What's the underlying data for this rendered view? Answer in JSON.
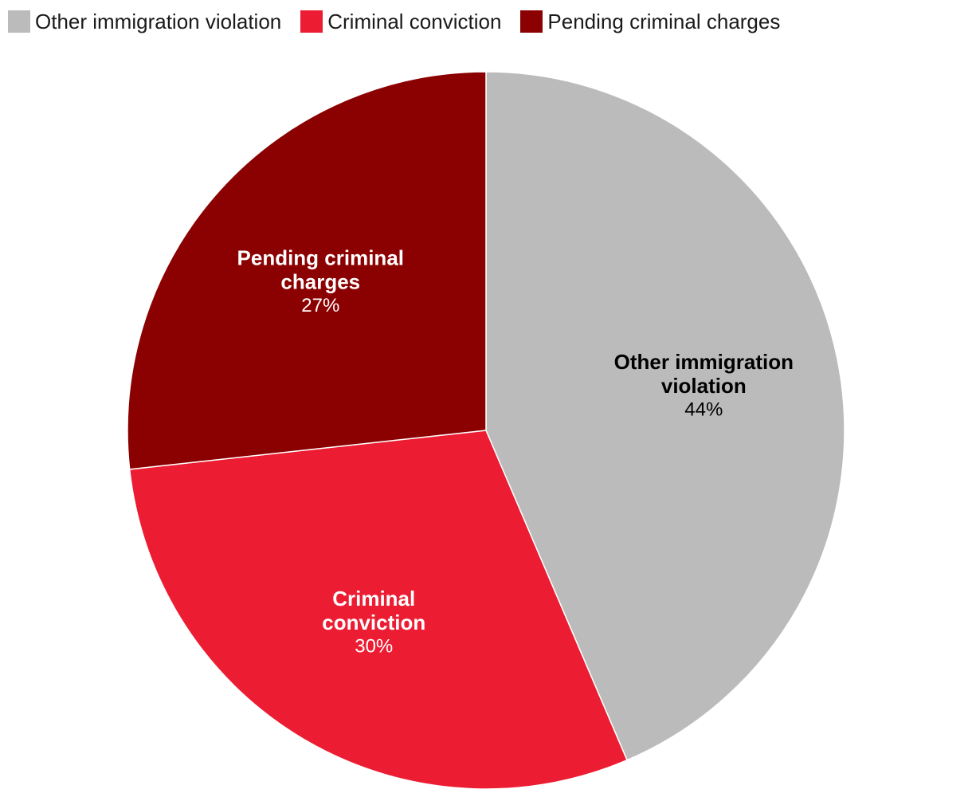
{
  "chart_data": {
    "type": "pie",
    "title": "",
    "legend_position": "top-left",
    "slices": [
      {
        "label": "Other immigration violation",
        "label_lines": [
          "Other immigration",
          "violation"
        ],
        "value": 44,
        "value_label": "44%",
        "color": "#bbbbbb",
        "label_color": "#000000"
      },
      {
        "label": "Criminal conviction",
        "label_lines": [
          "Criminal",
          "conviction"
        ],
        "value": 30,
        "value_label": "30%",
        "color": "#ec1c32",
        "label_color": "#ffffff"
      },
      {
        "label": "Pending criminal charges",
        "label_lines": [
          "Pending criminal",
          "charges"
        ],
        "value": 27,
        "value_label": "27%",
        "color": "#8b0000",
        "label_color": "#ffffff"
      }
    ]
  },
  "legend": {
    "items": [
      {
        "label": "Other immigration violation",
        "color": "#bbbbbb"
      },
      {
        "label": "Criminal conviction",
        "color": "#ec1c32"
      },
      {
        "label": "Pending criminal charges",
        "color": "#8b0000"
      }
    ]
  }
}
